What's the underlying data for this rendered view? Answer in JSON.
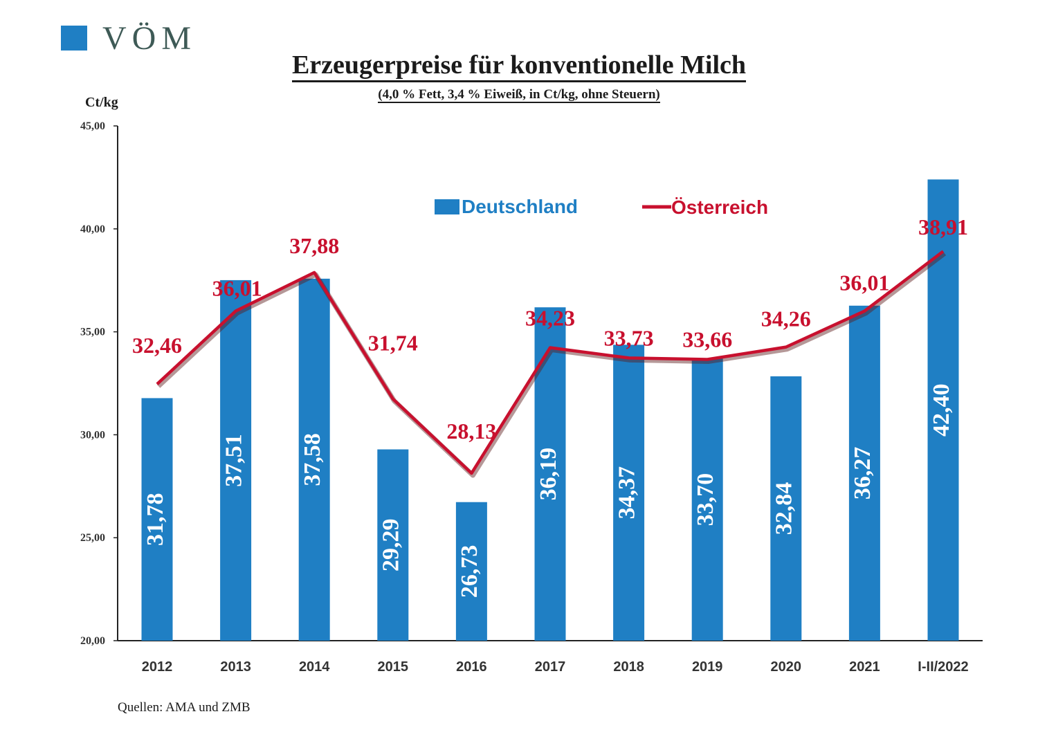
{
  "logo": {
    "text": "VÖM"
  },
  "chart_data": {
    "type": "bar",
    "title": "Erzeugerpreise für konventionelle Milch",
    "subtitle": "(4,0 % Fett, 3,4 % Eiweiß, in Ct/kg, ohne Steuern)",
    "ylabel": "Ct/kg",
    "xlabel": "",
    "ylim": [
      20,
      45
    ],
    "yticks": [
      "20,00",
      "25,00",
      "30,00",
      "35,00",
      "40,00",
      "45,00"
    ],
    "categories": [
      "2012",
      "2013",
      "2014",
      "2015",
      "2016",
      "2017",
      "2018",
      "2019",
      "2020",
      "2021",
      "I-II/2022"
    ],
    "series": [
      {
        "name": "Deutschland",
        "type": "bar",
        "color": "#1f7fc4",
        "values": [
          31.78,
          37.51,
          37.58,
          29.29,
          26.73,
          36.19,
          34.37,
          33.7,
          32.84,
          36.27,
          42.4
        ],
        "labels": [
          "31,78",
          "37,51",
          "37,58",
          "29,29",
          "26,73",
          "36,19",
          "34,37",
          "33,70",
          "32,84",
          "36,27",
          "42,40"
        ]
      },
      {
        "name": "Österreich",
        "type": "line",
        "color": "#c8102e",
        "values": [
          32.46,
          36.01,
          37.88,
          31.74,
          28.13,
          34.23,
          33.73,
          33.66,
          34.26,
          36.01,
          38.91
        ],
        "labels": [
          "32,46",
          "36,01",
          "37,88",
          "31,74",
          "28,13",
          "34,23",
          "33,73",
          "33,66",
          "34,26",
          "36,01",
          "38,91"
        ]
      }
    ],
    "legend": "top-center",
    "grid": false
  },
  "source": "Quellen: AMA und ZMB"
}
